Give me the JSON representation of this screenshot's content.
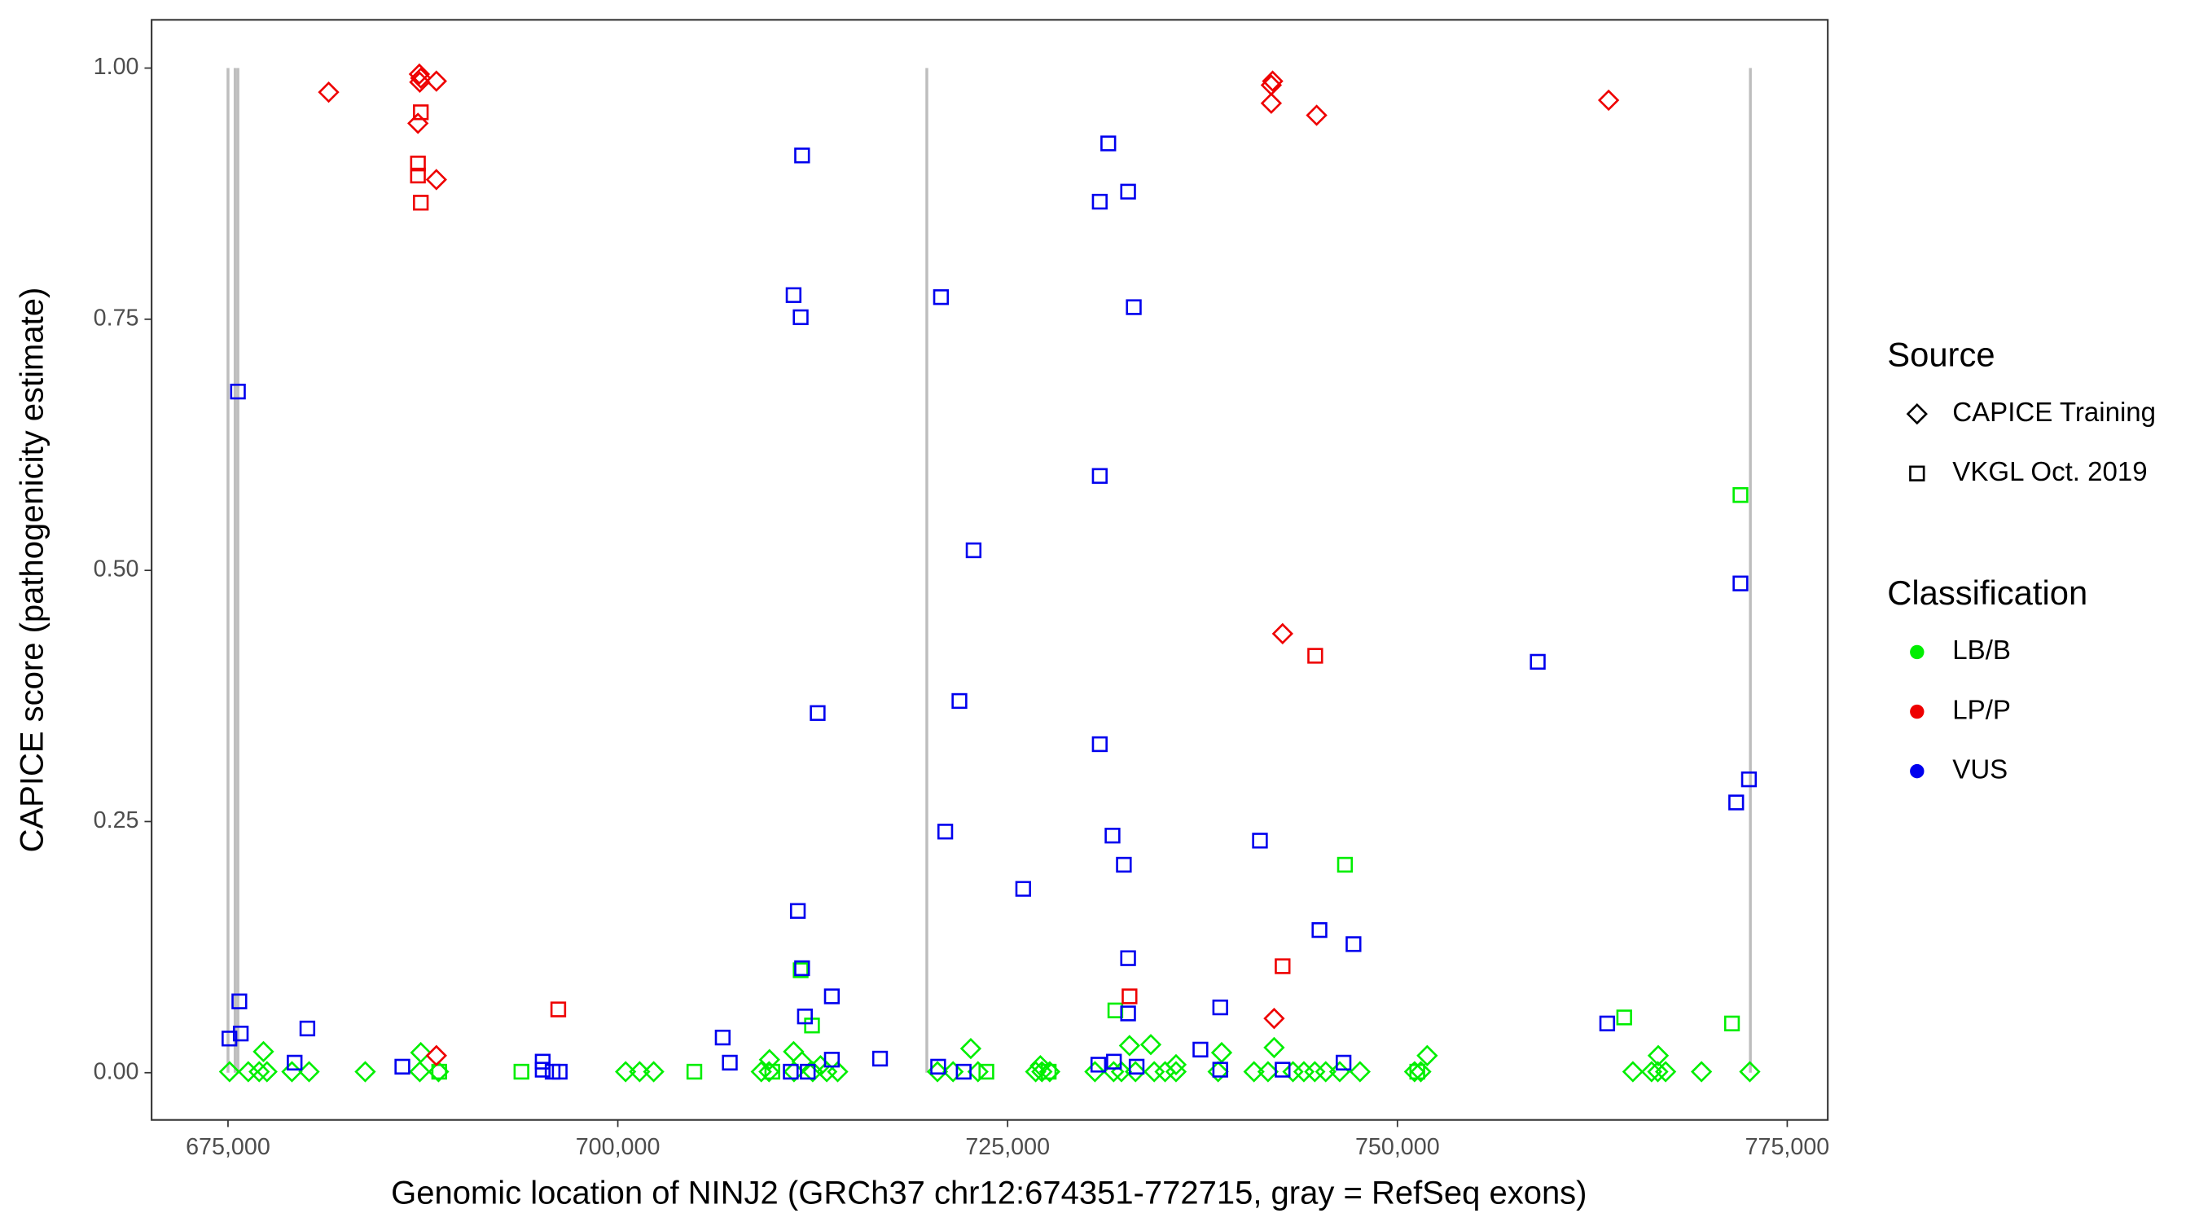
{
  "chart_data": {
    "type": "scatter",
    "x_label": "Genomic location of NINJ2 (GRCh37 chr12:674351-772715, gray = RefSeq exons)",
    "y_label": "CAPICE score (pathogenicity estimate)",
    "xlim": [
      670100,
      777600
    ],
    "ylim": [
      -0.047,
      1.048
    ],
    "xticks": [
      {
        "value": 675000,
        "label": "675,000"
      },
      {
        "value": 700000,
        "label": "700,000"
      },
      {
        "value": 725000,
        "label": "725,000"
      },
      {
        "value": 750000,
        "label": "750,000"
      },
      {
        "value": 775000,
        "label": "775,000"
      }
    ],
    "yticks": [
      {
        "value": 0,
        "label": "0.00"
      },
      {
        "value": 0.25,
        "label": "0.25"
      },
      {
        "value": 0.5,
        "label": "0.50"
      },
      {
        "value": 0.75,
        "label": "0.75"
      },
      {
        "value": 1,
        "label": "1.00"
      }
    ],
    "exons": [
      675000,
      675455,
      675636,
      719818,
      772636
    ],
    "exon_color": "#bebebe",
    "legend": {
      "source": {
        "title": "Source",
        "entries": [
          {
            "name": "CAPICE Training",
            "marker": "diamond"
          },
          {
            "name": "VKGL Oct. 2019",
            "marker": "square"
          }
        ]
      },
      "classification": {
        "title": "Classification",
        "entries": [
          {
            "name": "LB/B",
            "color": "#00ee00"
          },
          {
            "name": "LP/P",
            "color": "#ee0000"
          },
          {
            "name": "VUS",
            "color": "#0000ee"
          }
        ]
      }
    },
    "series": [
      {
        "marker": "diamond",
        "color": "#00ee00",
        "x": [
          675100,
          676300,
          677000,
          677500,
          679100,
          680200,
          683800,
          687300,
          688500,
          700500,
          701400,
          702300,
          709200,
          709700,
          711300,
          712500,
          713400,
          714100,
          720500,
          721500,
          723100,
          726800,
          727200,
          727700,
          730600,
          731800,
          732300,
          733200,
          734400,
          735100,
          735800,
          738500,
          740800,
          741700,
          743300,
          744000,
          744700,
          745400,
          746300,
          747600,
          751100,
          751500,
          765100,
          766300,
          766700,
          767200,
          769500,
          772600,
          677273,
          687364,
          711273,
          722636,
          732818,
          734182,
          738727,
          742091,
          751909,
          766727,
          709727,
          711818,
          713000,
          727100,
          735800
        ],
        "values": [
          0.001,
          0.001,
          0.001,
          0.001,
          0.001,
          0.001,
          0.001,
          0.001,
          0.001,
          0.001,
          0.001,
          0.001,
          0.001,
          0.001,
          0.001,
          0.001,
          0.001,
          0.001,
          0.001,
          0.001,
          0.001,
          0.001,
          0.001,
          0.001,
          0.001,
          0.001,
          0.001,
          0.001,
          0.001,
          0.001,
          0.001,
          0.001,
          0.001,
          0.001,
          0.001,
          0.001,
          0.001,
          0.001,
          0.001,
          0.001,
          0.001,
          0.001,
          0.001,
          0.001,
          0.001,
          0.001,
          0.001,
          0.001,
          0.021,
          0.02,
          0.021,
          0.024,
          0.027,
          0.028,
          0.02,
          0.025,
          0.017,
          0.017,
          0.013,
          0.011,
          0.007,
          0.007,
          0.008
        ]
      },
      {
        "marker": "square",
        "color": "#00ee00",
        "x": [
          772000,
          746636,
          764545,
          771455,
          711727,
          712455,
          731909,
          693818,
          688545,
          704909,
          709909,
          723636,
          727636,
          751273
        ],
        "values": [
          0.575,
          0.207,
          0.055,
          0.049,
          0.102,
          0.047,
          0.062,
          0.001,
          0.001,
          0.001,
          0.001,
          0.001,
          0.001,
          0.001
        ]
      },
      {
        "marker": "diamond",
        "color": "#ee0000",
        "x": [
          681455,
          687273,
          687364,
          687300,
          688364,
          687182,
          688364,
          688364,
          741997,
          741909,
          741909,
          744818,
          763545,
          742636,
          742091
        ],
        "values": [
          0.976,
          0.994,
          0.99,
          0.986,
          0.987,
          0.945,
          0.889,
          0.017,
          0.987,
          0.983,
          0.965,
          0.953,
          0.968,
          0.437,
          0.054
        ]
      },
      {
        "marker": "square",
        "color": "#ee0000",
        "x": [
          687364,
          687182,
          687182,
          687364,
          696182,
          732818,
          744727,
          742636
        ],
        "values": [
          0.956,
          0.905,
          0.893,
          0.866,
          0.063,
          0.076,
          0.415,
          0.106
        ]
      },
      {
        "marker": "square",
        "color": "#0000ee",
        "x": [
          675636,
          675091,
          675727,
          675818,
          680091,
          679273,
          686182,
          695182,
          695182,
          695818,
          696273,
          706727,
          707182,
          711818,
          711273,
          711727,
          712818,
          711545,
          711818,
          712000,
          713727,
          713727,
          711091,
          712182,
          716818,
          720727,
          721909,
          722818,
          721000,
          726000,
          720545,
          722182,
          731455,
          730909,
          732727,
          733091,
          730909,
          730909,
          731727,
          732455,
          732727,
          732727,
          731818,
          730818,
          733273,
          737364,
          738636,
          738636,
          741182,
          745000,
          747182,
          742636,
          746545,
          759000,
          763455,
          772000,
          772545,
          771727
        ],
        "values": [
          0.678,
          0.034,
          0.071,
          0.039,
          0.044,
          0.01,
          0.006,
          0.011,
          0.003,
          0.001,
          0.001,
          0.035,
          0.01,
          0.913,
          0.774,
          0.752,
          0.358,
          0.161,
          0.104,
          0.056,
          0.076,
          0.013,
          0.001,
          0.001,
          0.014,
          0.772,
          0.37,
          0.52,
          0.24,
          0.183,
          0.006,
          0.001,
          0.925,
          0.867,
          0.877,
          0.762,
          0.594,
          0.327,
          0.236,
          0.207,
          0.114,
          0.059,
          0.011,
          0.008,
          0.006,
          0.023,
          0.065,
          0.003,
          0.231,
          0.142,
          0.128,
          0.003,
          0.01,
          0.409,
          0.049,
          0.487,
          0.292,
          0.269
        ]
      }
    ]
  }
}
